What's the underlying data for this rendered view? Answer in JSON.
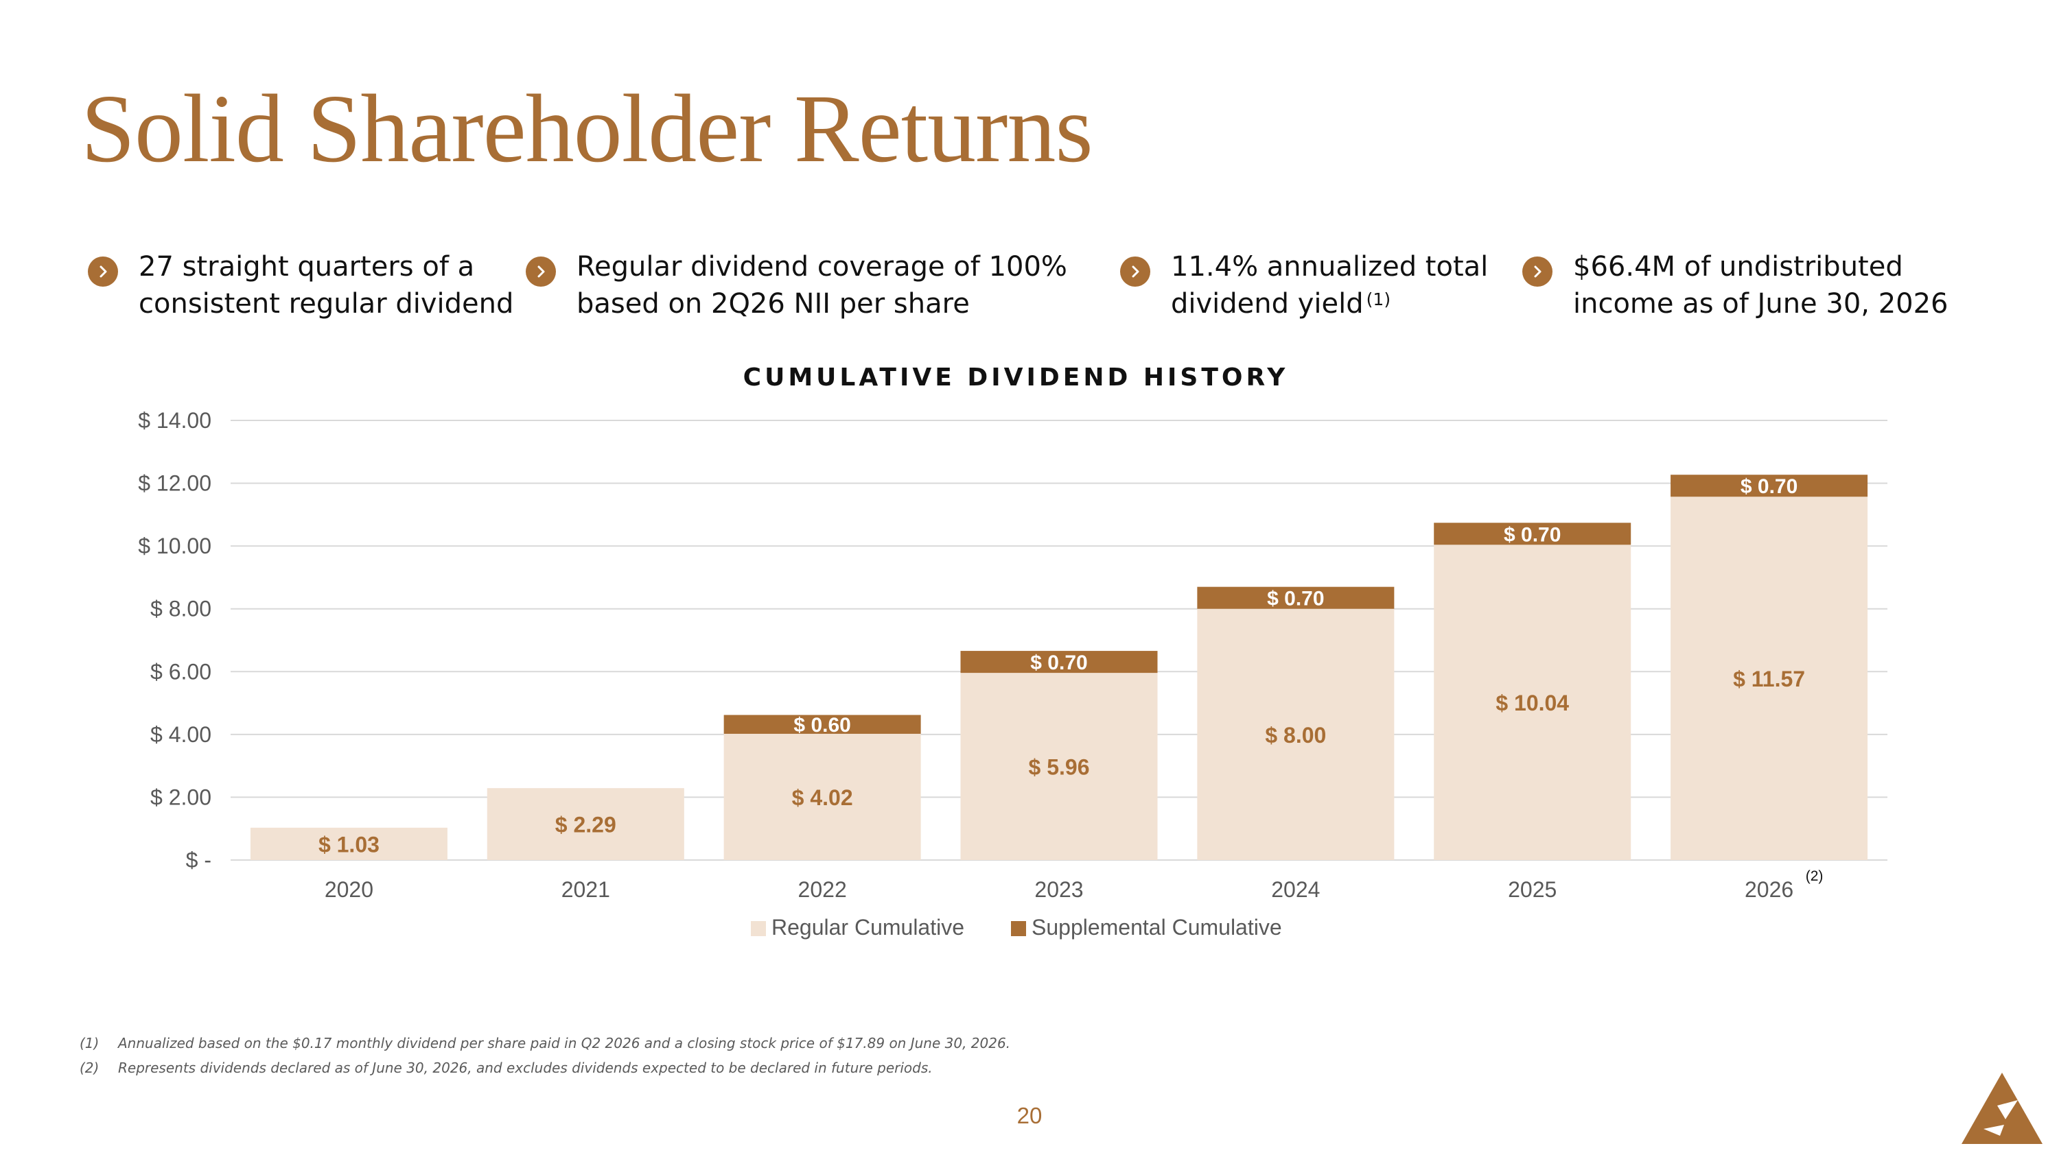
{
  "page": {
    "title": "Solid Shareholder Returns",
    "page_number": "20",
    "accent_color": "#a86e35"
  },
  "bullets": [
    {
      "line1": "27 straight quarters of a",
      "line2": "consistent regular dividend",
      "note": ""
    },
    {
      "line1": "Regular dividend coverage of 100%",
      "line2": "based on 2Q26 NII per share",
      "note": ""
    },
    {
      "line1": "11.4% annualized total",
      "line2": "dividend yield",
      "note": "(1)"
    },
    {
      "line1": "$66.4M of undistributed",
      "line2": "income as of June 30, 2026",
      "note": ""
    }
  ],
  "chart_data": {
    "type": "bar",
    "stacked": true,
    "title": "CUMULATIVE DIVIDEND HISTORY",
    "categories": [
      "2020",
      "2021",
      "2022",
      "2023",
      "2024",
      "2025",
      "2026"
    ],
    "category_notes": [
      "",
      "",
      "",
      "",
      "",
      "",
      "(2)"
    ],
    "series": [
      {
        "name": "Regular Cumulative",
        "color": "#f2e2d3",
        "values": [
          1.03,
          2.29,
          4.02,
          5.96,
          8.0,
          10.04,
          11.57
        ],
        "labels": [
          "$ 1.03",
          "$ 2.29",
          "$ 4.02",
          "$ 5.96",
          "$ 8.00",
          "$ 10.04",
          "$ 11.57"
        ],
        "label_color": "#a86e35"
      },
      {
        "name": "Supplemental Cumulative",
        "color": "#a86e35",
        "values": [
          0,
          0,
          0.6,
          0.7,
          0.7,
          0.7,
          0.7
        ],
        "labels": [
          "",
          "",
          "$ 0.60",
          "$ 0.70",
          "$ 0.70",
          "$ 0.70",
          "$ 0.70"
        ],
        "label_color": "#ffffff"
      }
    ],
    "ylim": [
      0,
      14
    ],
    "yticks": [
      0,
      2,
      4,
      6,
      8,
      10,
      12,
      14
    ],
    "ytick_labels": [
      "$ -",
      "$ 2.00",
      "$ 4.00",
      "$ 6.00",
      "$ 8.00",
      "$ 10.00",
      "$ 12.00",
      "$ 14.00"
    ],
    "grid": true,
    "legend_position": "bottom"
  },
  "footnotes": [
    {
      "num": "(1)",
      "text": "Annualized based on the $0.17 monthly dividend per share paid in Q2 2026 and a closing stock price of $17.89 on June 30, 2026."
    },
    {
      "num": "(2)",
      "text": "Represents dividends declared as of June 30, 2026, and excludes dividends expected to be declared in future periods."
    }
  ]
}
